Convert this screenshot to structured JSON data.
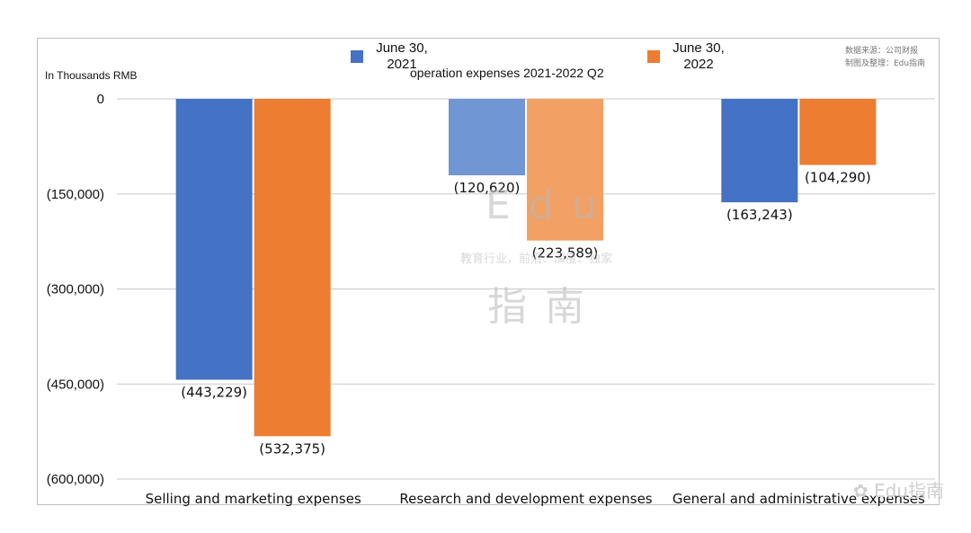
{
  "chart_data": {
    "type": "bar",
    "title": "operation expenses 2021-2022 Q2",
    "ylabel": "In Thousands RMB",
    "categories": [
      "Selling and marketing expenses",
      "Research and development expenses",
      "General and administrative expenses"
    ],
    "series": [
      {
        "name": "June 30, 2021",
        "values": [
          -443229,
          -120620,
          -163243
        ],
        "labels": [
          "(443,229)",
          "(120,620)",
          "(163,243)"
        ],
        "color": "#4472c4"
      },
      {
        "name": "June 30, 2022",
        "values": [
          -532375,
          -223589,
          -104290
        ],
        "labels": [
          "(532,375)",
          "(223,589)",
          "(104,290)"
        ],
        "color": "#ed7d31"
      }
    ],
    "ylim": [
      -600000,
      0
    ],
    "yticks": [
      0,
      -150000,
      -300000,
      -450000,
      -600000
    ],
    "ytick_labels": [
      "0",
      "(150,000)",
      "(300,000)",
      "(450,000)",
      "(600,000)"
    ],
    "grid": true,
    "legend_position": "top"
  },
  "legend": {
    "series1_line1": "June 30,",
    "series1_line2": "2021",
    "series2_line1": "June 30,",
    "series2_line2": "2022"
  },
  "source_note": {
    "line1": "数据来源：公司财报",
    "line2": "制图及整理：Edu指南"
  },
  "watermark": {
    "big_top": "Edu",
    "small": "教育行业，前沿、深度、独家",
    "big_bottom": "指南",
    "corner": "Edu指南"
  }
}
